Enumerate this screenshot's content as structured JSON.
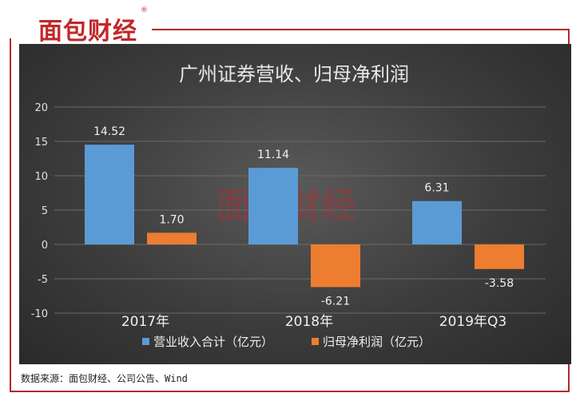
{
  "brand": {
    "logo_text": "面包财经",
    "registered_mark": "®",
    "watermark_text": "面包财经"
  },
  "source_note": "数据来源：面包财经、公司公告、Wind",
  "colors": {
    "revenue": "#5b9bd5",
    "net_profit": "#ed7d31",
    "frame": "#b42a2a",
    "brand": "#c0282a"
  },
  "chart_data": {
    "type": "bar",
    "title": "广州证券营收、归母净利润",
    "categories": [
      "2017年",
      "2018年",
      "2019年Q3"
    ],
    "series": [
      {
        "name": "营业收入合计（亿元）",
        "values": [
          14.52,
          11.14,
          6.31
        ]
      },
      {
        "name": "归母净利润（亿元）",
        "values": [
          1.7,
          -6.21,
          -3.58
        ]
      }
    ],
    "value_labels": [
      [
        "14.52",
        "11.14",
        "6.31"
      ],
      [
        "1.70",
        "-6.21",
        "-3.58"
      ]
    ],
    "yticks": [
      "20",
      "15",
      "10",
      "5",
      "0",
      "-5",
      "-10"
    ],
    "ylim": [
      -10,
      20
    ],
    "grid": true,
    "legend_position": "bottom"
  }
}
